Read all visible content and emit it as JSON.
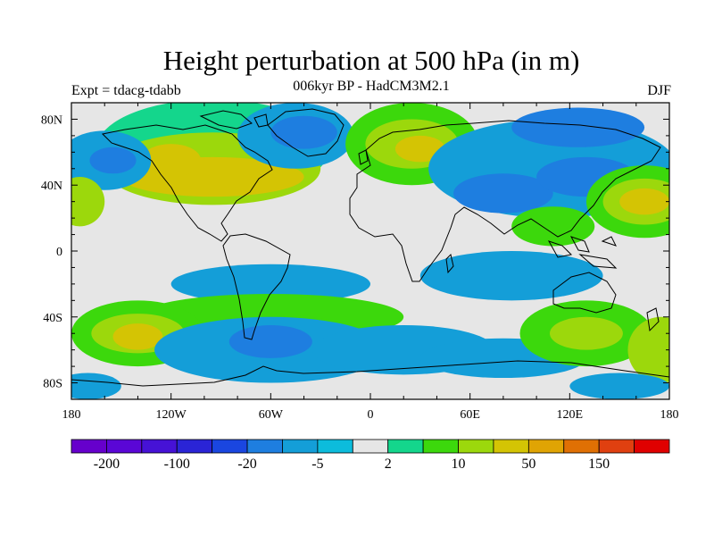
{
  "title": "Height perturbation at 500 hPa (in m)",
  "subtitle": "006kyr BP - HadCM3M2.1",
  "left_label": "Expt = tdacg-tdabb",
  "right_label": "DJF",
  "map": {
    "lon_range": [
      -180,
      180
    ],
    "lat_range": [
      -90,
      90
    ],
    "x_ticks": [
      {
        "value": -180,
        "label": "180"
      },
      {
        "value": -120,
        "label": "120W"
      },
      {
        "value": -60,
        "label": "60W"
      },
      {
        "value": 0,
        "label": "0"
      },
      {
        "value": 60,
        "label": "60E"
      },
      {
        "value": 120,
        "label": "120E"
      },
      {
        "value": 180,
        "label": "180"
      }
    ],
    "y_ticks": [
      {
        "value": 80,
        "label": "80N"
      },
      {
        "value": 40,
        "label": "40N"
      },
      {
        "value": 0,
        "label": "0"
      },
      {
        "value": -40,
        "label": "40S"
      },
      {
        "value": -80,
        "label": "80S"
      }
    ],
    "minor_x_step": 20,
    "minor_y_step": 10,
    "background_color": "#e6e6e6"
  },
  "colorbar": {
    "colors": [
      "#6600cc",
      "#5a06d6",
      "#4612d6",
      "#2a24d6",
      "#1a46e0",
      "#1e7ee0",
      "#149ed8",
      "#0cbcdc",
      "#e6e6e6",
      "#14d68c",
      "#3cd80c",
      "#9cd80c",
      "#d4c404",
      "#e0a404",
      "#e07004",
      "#e04010",
      "#e00000"
    ],
    "labels": [
      {
        "after_box": 1,
        "text": "-200"
      },
      {
        "after_box": 3,
        "text": "-100"
      },
      {
        "after_box": 5,
        "text": "-20"
      },
      {
        "after_box": 7,
        "text": "-5"
      },
      {
        "after_box": 9,
        "text": "2"
      },
      {
        "after_box": 11,
        "text": "10"
      },
      {
        "after_box": 13,
        "text": "50"
      },
      {
        "after_box": 15,
        "text": "150"
      }
    ]
  },
  "anomaly_regions": [
    {
      "lon": -95,
      "lat": 62,
      "rx": 70,
      "ry": 30,
      "level": 9
    },
    {
      "lon": -95,
      "lat": 50,
      "rx": 65,
      "ry": 22,
      "level": 11
    },
    {
      "lon": -95,
      "lat": 45,
      "rx": 55,
      "ry": 12,
      "level": 12
    },
    {
      "lon": -120,
      "lat": 55,
      "rx": 18,
      "ry": 10,
      "level": 12
    },
    {
      "lon": -45,
      "lat": 70,
      "rx": 35,
      "ry": 20,
      "level": 6
    },
    {
      "lon": -40,
      "lat": 72,
      "rx": 20,
      "ry": 10,
      "level": 5
    },
    {
      "lon": 25,
      "lat": 65,
      "rx": 40,
      "ry": 25,
      "level": 10
    },
    {
      "lon": 25,
      "lat": 65,
      "rx": 28,
      "ry": 15,
      "level": 11
    },
    {
      "lon": 30,
      "lat": 62,
      "rx": 15,
      "ry": 8,
      "level": 12
    },
    {
      "lon": -160,
      "lat": 55,
      "rx": 28,
      "ry": 18,
      "level": 6
    },
    {
      "lon": -155,
      "lat": 55,
      "rx": 14,
      "ry": 8,
      "level": 5
    },
    {
      "lon": 110,
      "lat": 50,
      "rx": 75,
      "ry": 30,
      "level": 6
    },
    {
      "lon": 80,
      "lat": 35,
      "rx": 30,
      "ry": 12,
      "level": 5
    },
    {
      "lon": 130,
      "lat": 45,
      "rx": 30,
      "ry": 12,
      "level": 5
    },
    {
      "lon": 125,
      "lat": 75,
      "rx": 40,
      "ry": 12,
      "level": 5
    },
    {
      "lon": 165,
      "lat": 30,
      "rx": 35,
      "ry": 22,
      "level": 10
    },
    {
      "lon": 165,
      "lat": 30,
      "rx": 25,
      "ry": 14,
      "level": 11
    },
    {
      "lon": 165,
      "lat": 30,
      "rx": 15,
      "ry": 8,
      "level": 12
    },
    {
      "lon": -175,
      "lat": 30,
      "rx": 15,
      "ry": 15,
      "level": 11
    },
    {
      "lon": 110,
      "lat": 15,
      "rx": 25,
      "ry": 12,
      "level": 10
    },
    {
      "lon": 85,
      "lat": -15,
      "rx": 55,
      "ry": 15,
      "level": 6
    },
    {
      "lon": -60,
      "lat": -20,
      "rx": 60,
      "ry": 12,
      "level": 6
    },
    {
      "lon": -60,
      "lat": -40,
      "rx": 80,
      "ry": 14,
      "level": 10
    },
    {
      "lon": -140,
      "lat": -50,
      "rx": 40,
      "ry": 20,
      "level": 10
    },
    {
      "lon": -140,
      "lat": -50,
      "rx": 28,
      "ry": 12,
      "level": 11
    },
    {
      "lon": -140,
      "lat": -52,
      "rx": 15,
      "ry": 8,
      "level": 12
    },
    {
      "lon": -60,
      "lat": -60,
      "rx": 70,
      "ry": 20,
      "level": 6
    },
    {
      "lon": -60,
      "lat": -55,
      "rx": 25,
      "ry": 10,
      "level": 5
    },
    {
      "lon": 20,
      "lat": -60,
      "rx": 55,
      "ry": 15,
      "level": 6
    },
    {
      "lon": 80,
      "lat": -65,
      "rx": 50,
      "ry": 12,
      "level": 6
    },
    {
      "lon": 130,
      "lat": -50,
      "rx": 40,
      "ry": 20,
      "level": 10
    },
    {
      "lon": 130,
      "lat": -50,
      "rx": 22,
      "ry": 10,
      "level": 11
    },
    {
      "lon": 175,
      "lat": -60,
      "rx": 20,
      "ry": 20,
      "level": 11
    },
    {
      "lon": -170,
      "lat": -82,
      "rx": 20,
      "ry": 8,
      "level": 6
    },
    {
      "lon": 150,
      "lat": -82,
      "rx": 30,
      "ry": 8,
      "level": 6
    }
  ]
}
